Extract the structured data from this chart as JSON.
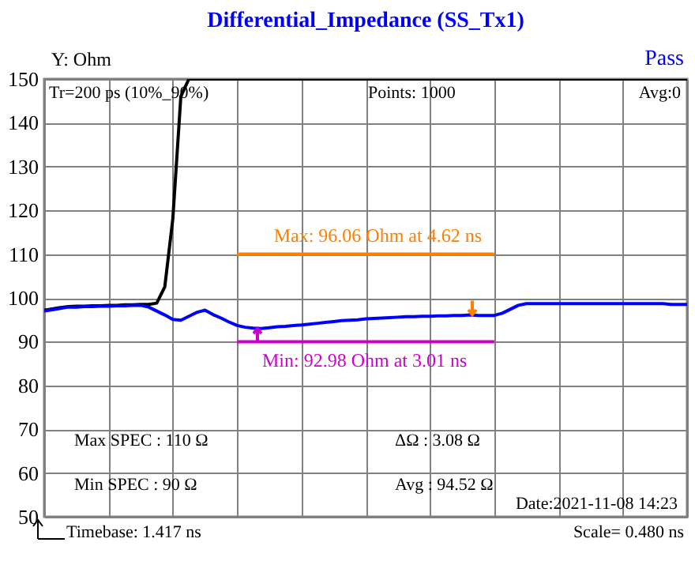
{
  "chart_data": {
    "type": "line",
    "title": "Differential_Impedance (SS_Tx1)",
    "ylabel": "Y: Ohm",
    "categories": [
      null,
      null,
      null,
      null,
      null,
      null,
      null,
      null,
      null,
      null,
      null,
      null,
      null,
      null,
      null,
      null,
      null,
      null,
      null,
      null,
      null,
      null,
      null,
      null,
      null,
      null,
      null,
      null,
      null,
      null,
      null,
      null,
      null,
      null,
      null,
      null,
      null,
      null,
      null,
      null,
      null,
      null,
      null,
      null,
      null,
      null,
      null,
      null,
      null,
      null,
      null,
      null,
      null,
      null,
      null,
      null,
      null,
      null,
      null,
      null,
      null,
      null,
      null,
      null,
      null,
      null,
      null,
      null,
      null,
      null,
      null,
      null,
      null,
      null,
      null,
      null,
      null,
      null,
      null,
      null,
      null
    ],
    "ylim": [
      50,
      150
    ],
    "yticks": [
      50,
      60,
      70,
      80,
      90,
      100,
      110,
      120,
      130,
      140,
      150
    ],
    "grid": true,
    "tick_labels": "y",
    "series": [
      {
        "color": "#000000",
        "values": [
          97.2,
          97.5,
          97.8,
          98.0,
          98.1,
          98.1,
          98.2,
          98.2,
          98.3,
          98.3,
          98.4,
          98.4,
          98.5,
          98.5,
          98.8,
          102.5,
          118,
          146,
          150,
          150,
          150,
          150,
          150,
          150,
          150,
          150,
          150,
          150,
          150,
          150,
          150,
          150,
          150,
          150,
          150,
          150,
          150,
          150,
          150,
          150,
          150,
          150,
          150,
          150,
          150,
          150,
          150,
          150,
          150,
          150,
          150,
          150,
          150,
          150,
          150,
          150,
          150,
          150,
          150,
          150,
          150,
          150,
          150,
          150,
          150,
          150,
          150,
          150,
          150,
          150,
          150,
          150,
          150,
          150,
          150,
          150,
          150,
          150,
          150,
          150,
          150
        ]
      },
      {
        "color": "#0000ff",
        "values": [
          97.0,
          97.3,
          97.6,
          97.9,
          97.9,
          98.0,
          98.0,
          98.1,
          98.1,
          98.2,
          98.2,
          98.3,
          98.3,
          97.9,
          97.0,
          96.1,
          95.1,
          94.9,
          95.8,
          96.7,
          97.2,
          96.2,
          95.4,
          94.5,
          93.7,
          93.3,
          93.1,
          93.0,
          93.2,
          93.4,
          93.5,
          93.7,
          93.8,
          94.0,
          94.2,
          94.4,
          94.6,
          94.8,
          94.9,
          95.0,
          95.2,
          95.3,
          95.4,
          95.5,
          95.6,
          95.7,
          95.7,
          95.8,
          95.8,
          95.9,
          95.9,
          96.0,
          96.0,
          96.1,
          96.0,
          96.0,
          96.0,
          96.5,
          97.4,
          98.3,
          98.7,
          98.7,
          98.7,
          98.7,
          98.7,
          98.7,
          98.7,
          98.7,
          98.7,
          98.7,
          98.7,
          98.7,
          98.7,
          98.7,
          98.7,
          98.7,
          98.7,
          98.7,
          98.5,
          98.5,
          98.5
        ]
      },
      {
        "color": "#ff8000",
        "values": [
          null,
          null,
          null,
          null,
          null,
          null,
          null,
          null,
          null,
          null,
          null,
          null,
          null,
          null,
          null,
          null,
          null,
          null,
          null,
          null,
          null,
          null,
          null,
          null,
          110,
          110,
          110,
          110,
          110,
          110,
          110,
          110,
          110,
          110,
          110,
          110,
          110,
          110,
          110,
          110,
          110,
          110,
          110,
          110,
          110,
          110,
          110,
          110,
          110,
          110,
          110,
          110,
          110,
          110,
          110,
          110,
          110,
          null,
          null,
          null,
          null,
          null,
          null,
          null,
          null,
          null,
          null,
          null,
          null,
          null,
          null,
          null,
          null,
          null,
          null,
          null,
          null,
          null,
          null,
          null,
          null
        ]
      },
      {
        "color": "#cc00cc",
        "values": [
          null,
          null,
          null,
          null,
          null,
          null,
          null,
          null,
          null,
          null,
          null,
          null,
          null,
          null,
          null,
          null,
          null,
          null,
          null,
          null,
          null,
          null,
          null,
          null,
          90,
          90,
          90,
          90,
          90,
          90,
          90,
          90,
          90,
          90,
          90,
          90,
          90,
          90,
          90,
          90,
          90,
          90,
          90,
          90,
          90,
          90,
          90,
          90,
          90,
          90,
          90,
          90,
          90,
          90,
          90,
          90,
          90,
          null,
          null,
          null,
          null,
          null,
          null,
          null,
          null,
          null,
          null,
          null,
          null,
          null,
          null,
          null,
          null,
          null,
          null,
          null,
          null,
          null,
          null,
          null,
          null
        ]
      }
    ],
    "annotations": [
      "Max: 96.06  Ohm at 4.62  ns",
      "Min: 92.98  Ohm at 3.01  ns",
      "Pass",
      "Tr=200  ps (10%_90%)",
      "Points: 1000",
      "Avg:0",
      "Max SPEC : 110 Ω",
      "Min  SPEC : 90  Ω",
      "ΔΩ  : 3.08 Ω",
      "Avg : 94.52 Ω",
      "Date:2021-11-08 14:23",
      "Timebase: 1.417  ns",
      "Scale=     0.480 ns"
    ]
  }
}
